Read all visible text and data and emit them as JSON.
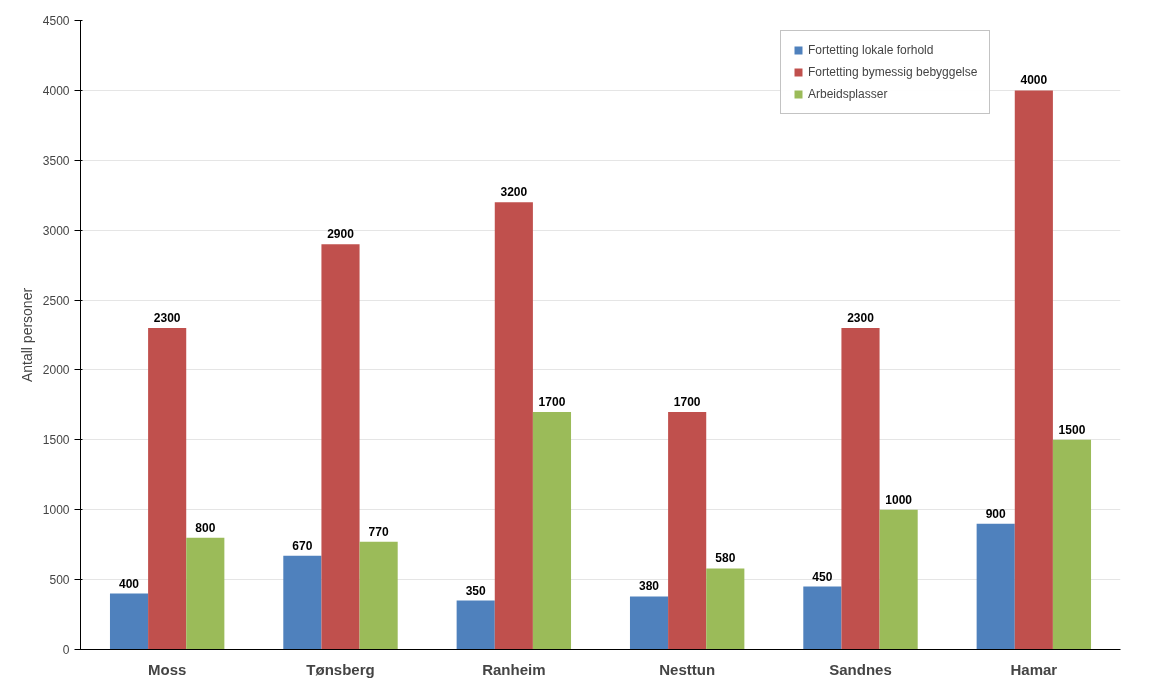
{
  "chart_data": {
    "type": "bar",
    "ylabel": "Antall personer",
    "categories": [
      "Moss",
      "Tønsberg",
      "Ranheim",
      "Nesttun",
      "Sandnes",
      "Hamar"
    ],
    "series": [
      {
        "name": "Fortetting lokale forhold",
        "color": "#4f81bd",
        "values": [
          400,
          670,
          350,
          380,
          450,
          900
        ]
      },
      {
        "name": "Fortetting bymessig bebyggelse",
        "color": "#c0504d",
        "values": [
          2300,
          2900,
          3200,
          1700,
          2300,
          4000
        ]
      },
      {
        "name": "Arbeidsplasser",
        "color": "#9bbb59",
        "values": [
          800,
          770,
          1700,
          580,
          1000,
          1500
        ]
      }
    ],
    "ylim": [
      0,
      4500
    ],
    "yticks": [
      0,
      500,
      1000,
      1500,
      2000,
      2500,
      3000,
      3500,
      4000,
      4500
    ],
    "grid": "y",
    "legend": "top right",
    "data_labels": true
  }
}
